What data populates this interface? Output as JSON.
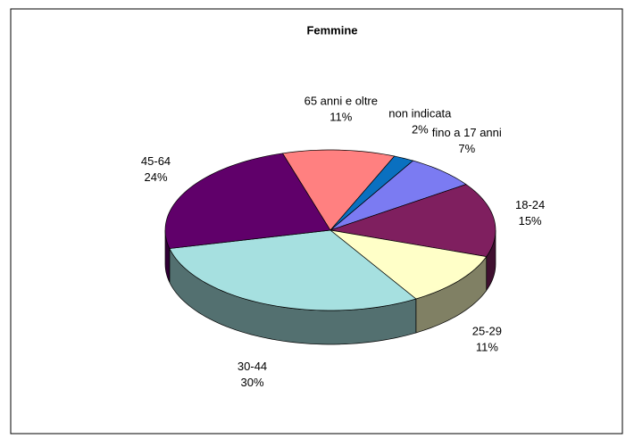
{
  "chart_data": {
    "type": "pie3d",
    "title": "Femmine",
    "categories": [
      "fino a 17 anni",
      "18-24",
      "25-29",
      "30-44",
      "45-64",
      "65 anni  e oltre",
      "non indicata"
    ],
    "values": [
      7,
      15,
      11,
      30,
      24,
      11,
      2
    ],
    "value_labels": [
      "7%",
      "15%",
      "11%",
      "30%",
      "24%",
      "11%",
      "2%"
    ],
    "colors": [
      "#7b7bf2",
      "#7f1f5f",
      "#ffffc8",
      "#a6e0e0",
      "#60006a",
      "#ff8080",
      "#0a70c0"
    ]
  }
}
